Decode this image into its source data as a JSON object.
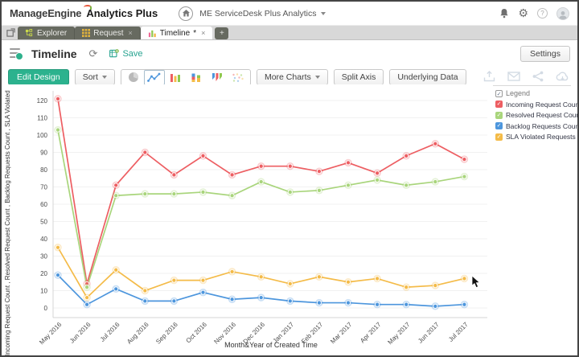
{
  "header": {
    "brand": "ManageEngine",
    "product": "Analytics Plus",
    "workspace_selector": "ME ServiceDesk Plus Analytics"
  },
  "tab_bar": {
    "tabs": [
      {
        "label": "Explorer"
      },
      {
        "label": "Request",
        "close": "×"
      },
      {
        "label": "Timeline",
        "dirty": "*",
        "close": "×"
      }
    ],
    "new_tab_label": "+"
  },
  "toolbar": {
    "title": "Timeline",
    "save_label": "Save",
    "settings_label": "Settings",
    "edit_design_label": "Edit Design",
    "sort_label": "Sort",
    "more_charts_label": "More Charts",
    "split_axis_label": "Split Axis",
    "underlying_data_label": "Underlying Data"
  },
  "chart_data": {
    "type": "line",
    "xlabel": "Month&Year of Created Time",
    "ylabel": "Incoming Request Count , Resolved Request Count , Backlog Requests Count , SLA Violated Requests",
    "ylim": [
      0,
      130
    ],
    "yticks": [
      0,
      10,
      20,
      30,
      40,
      50,
      60,
      70,
      80,
      90,
      100,
      110,
      120
    ],
    "grid": true,
    "legend_title": "Legend",
    "legend_position": "right",
    "categories": [
      "May 2016",
      "Jun 2016",
      "Jul 2016",
      "Aug 2016",
      "Sep 2016",
      "Oct 2016",
      "Nov 2016",
      "Dec 2016",
      "Jan 2017",
      "Feb 2017",
      "Mar 2017",
      "Apr 2017",
      "May 2017",
      "Jun 2017",
      "Jul 2017"
    ],
    "series": [
      {
        "name": "Incoming Request Count",
        "color": "#ed5e62",
        "values": [
          121,
          14,
          71,
          90,
          77,
          88,
          77,
          82,
          82,
          79,
          84,
          78,
          88,
          95,
          86
        ]
      },
      {
        "name": "Resolved Request Count",
        "color": "#a9d57c",
        "values": [
          103,
          12,
          65,
          66,
          66,
          67,
          65,
          73,
          67,
          68,
          71,
          74,
          71,
          73,
          76
        ]
      },
      {
        "name": "Backlog Requests Count",
        "color": "#4d96dd",
        "values": [
          19,
          2,
          11,
          4,
          4,
          9,
          5,
          6,
          4,
          3,
          3,
          2,
          2,
          1,
          2
        ]
      },
      {
        "name": "SLA Violated Requests",
        "color": "#f4bb48",
        "values": [
          35,
          6,
          22,
          10,
          16,
          16,
          21,
          18,
          14,
          18,
          15,
          17,
          12,
          13,
          17
        ]
      }
    ]
  }
}
